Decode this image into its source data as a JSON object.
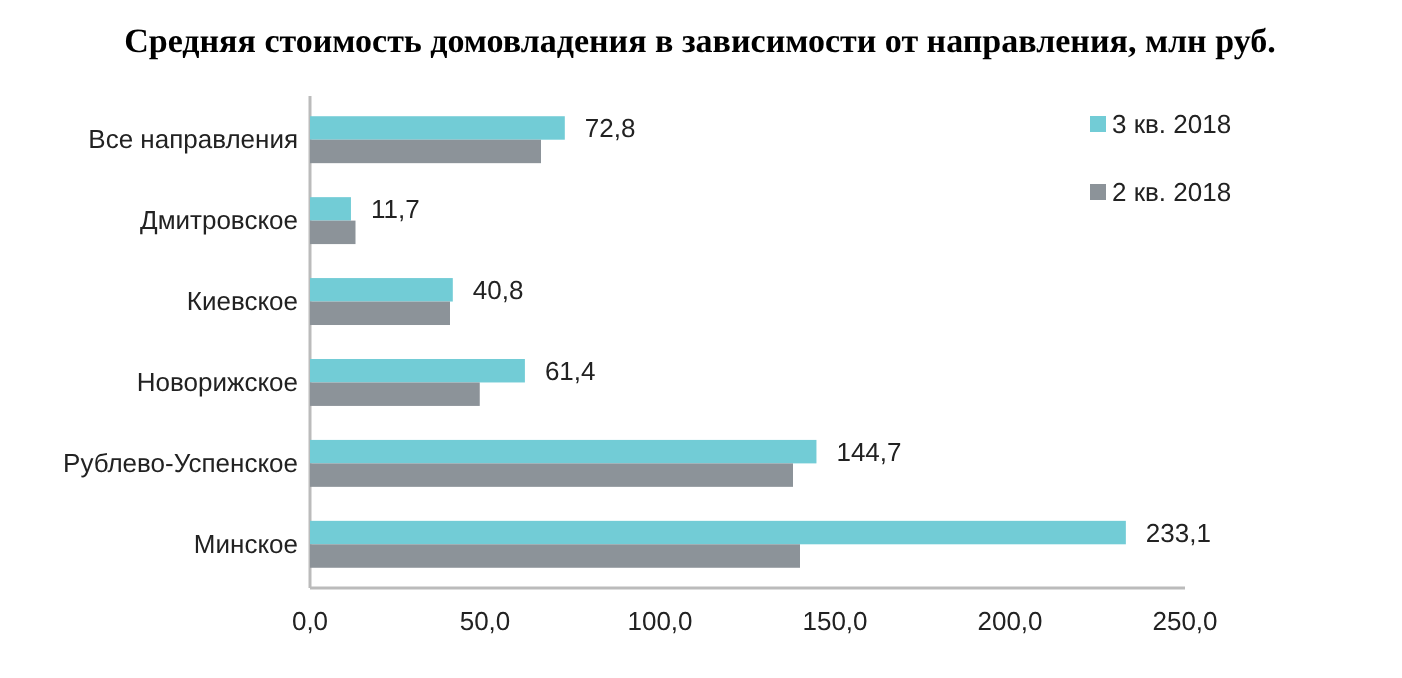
{
  "chart_data": {
    "type": "bar",
    "orientation": "horizontal",
    "title": "Средняя стоимость домовладения в зависимости от направления, млн руб.",
    "categories": [
      "Все направления",
      "Дмитровское",
      "Киевское",
      "Новорижское",
      "Рублево-Успенское",
      "Минское"
    ],
    "series": [
      {
        "name": "3 кв. 2018",
        "color": "#72ccd6",
        "values": [
          72.8,
          11.7,
          40.8,
          61.4,
          144.7,
          233.1
        ],
        "value_labels": [
          "72,8",
          "11,7",
          "40,8",
          "61,4",
          "144,7",
          "233,1"
        ]
      },
      {
        "name": "2 кв. 2018",
        "color": "#8c9399",
        "values": [
          66,
          13,
          40,
          48.5,
          138,
          140
        ]
      }
    ],
    "xlim": [
      0,
      250
    ],
    "xticks": [
      {
        "value": 0,
        "label": "0,0"
      },
      {
        "value": 50,
        "label": "50,0"
      },
      {
        "value": 100,
        "label": "100,0"
      },
      {
        "value": 150,
        "label": "150,0"
      },
      {
        "value": 200,
        "label": "200,0"
      },
      {
        "value": 250,
        "label": "250,0"
      }
    ],
    "grid": false,
    "legend": "top right"
  }
}
